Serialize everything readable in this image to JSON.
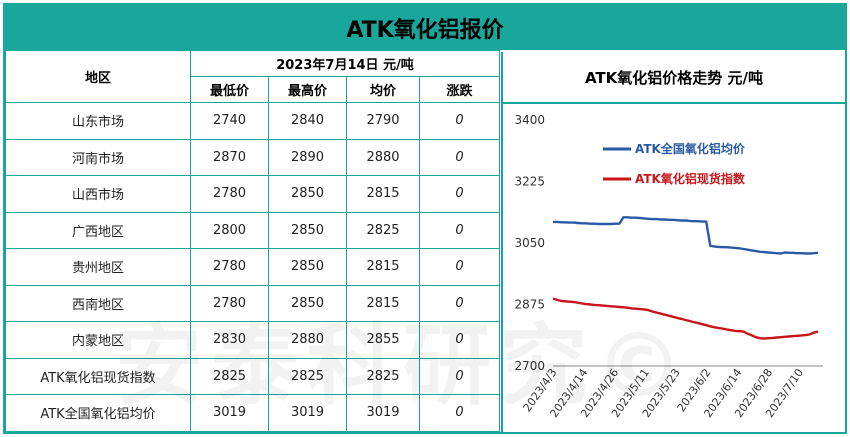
{
  "page": {
    "title": "ATK氧化铝报价",
    "watermark": "安泰科研究©"
  },
  "table": {
    "region_header": "地区",
    "date_header": "2023年7月14日  元/吨",
    "columns": [
      "最低价",
      "最高价",
      "均价",
      "涨跌"
    ],
    "rows": [
      {
        "region": "山东市场",
        "low": "2740",
        "high": "2840",
        "avg": "2790",
        "change": "0"
      },
      {
        "region": "河南市场",
        "low": "2870",
        "high": "2890",
        "avg": "2880",
        "change": "0"
      },
      {
        "region": "山西市场",
        "low": "2780",
        "high": "2850",
        "avg": "2815",
        "change": "0"
      },
      {
        "region": "广西地区",
        "low": "2800",
        "high": "2850",
        "avg": "2825",
        "change": "0"
      },
      {
        "region": "贵州地区",
        "low": "2780",
        "high": "2850",
        "avg": "2815",
        "change": "0"
      },
      {
        "region": "西南地区",
        "low": "2780",
        "high": "2850",
        "avg": "2815",
        "change": "0"
      },
      {
        "region": "内蒙地区",
        "low": "2830",
        "high": "2880",
        "avg": "2855",
        "change": "0"
      },
      {
        "region": "ATK氧化铝现货指数",
        "low": "2825",
        "high": "2825",
        "avg": "2825",
        "change": "0"
      },
      {
        "region": "ATK全国氧化铝均价",
        "low": "3019",
        "high": "3019",
        "avg": "3019",
        "change": "0"
      }
    ]
  },
  "chart_data": {
    "type": "line",
    "title": "ATK氧化铝价格走势  元/吨",
    "ylim": [
      2700,
      3400
    ],
    "yticks": [
      "3400",
      "3225",
      "3050",
      "2875",
      "2700"
    ],
    "xticks": [
      "2023/4/3",
      "2023/4/14",
      "2023/4/26",
      "2023/5/11",
      "2023/5/23",
      "2023/6/2",
      "2023/6/14",
      "2023/6/28",
      "2023/7/10"
    ],
    "legend_position": "top",
    "grid": false,
    "series": [
      {
        "name": "ATK全国氧化铝均价",
        "color": "#2a5aa5",
        "values": [
          3110,
          3110,
          3109,
          3109,
          3108,
          3108,
          3107,
          3106,
          3106,
          3105,
          3105,
          3104,
          3104,
          3104,
          3104,
          3105,
          3105,
          3123,
          3123,
          3122,
          3122,
          3121,
          3120,
          3119,
          3118,
          3118,
          3117,
          3117,
          3116,
          3116,
          3115,
          3114,
          3114,
          3113,
          3112,
          3112,
          3111,
          3111,
          3042,
          3040,
          3039,
          3038,
          3038,
          3037,
          3036,
          3035,
          3033,
          3031,
          3029,
          3027,
          3025,
          3024,
          3023,
          3022,
          3021,
          3020,
          3023,
          3022,
          3022,
          3021,
          3021,
          3020,
          3020,
          3021,
          3022
        ]
      },
      {
        "name": "ATK氧化铝现货指数",
        "color": "#c8151b",
        "values": [
          2892,
          2888,
          2885,
          2884,
          2883,
          2882,
          2880,
          2878,
          2876,
          2875,
          2874,
          2873,
          2872,
          2871,
          2870,
          2869,
          2868,
          2867,
          2866,
          2864,
          2863,
          2862,
          2861,
          2859,
          2855,
          2852,
          2849,
          2846,
          2843,
          2840,
          2837,
          2834,
          2831,
          2828,
          2825,
          2822,
          2819,
          2816,
          2813,
          2810,
          2808,
          2806,
          2804,
          2802,
          2800,
          2799,
          2798,
          2792,
          2787,
          2782,
          2779,
          2778,
          2779,
          2780,
          2781,
          2782,
          2783,
          2784,
          2785,
          2786,
          2787,
          2788,
          2790,
          2795,
          2798
        ]
      }
    ]
  }
}
